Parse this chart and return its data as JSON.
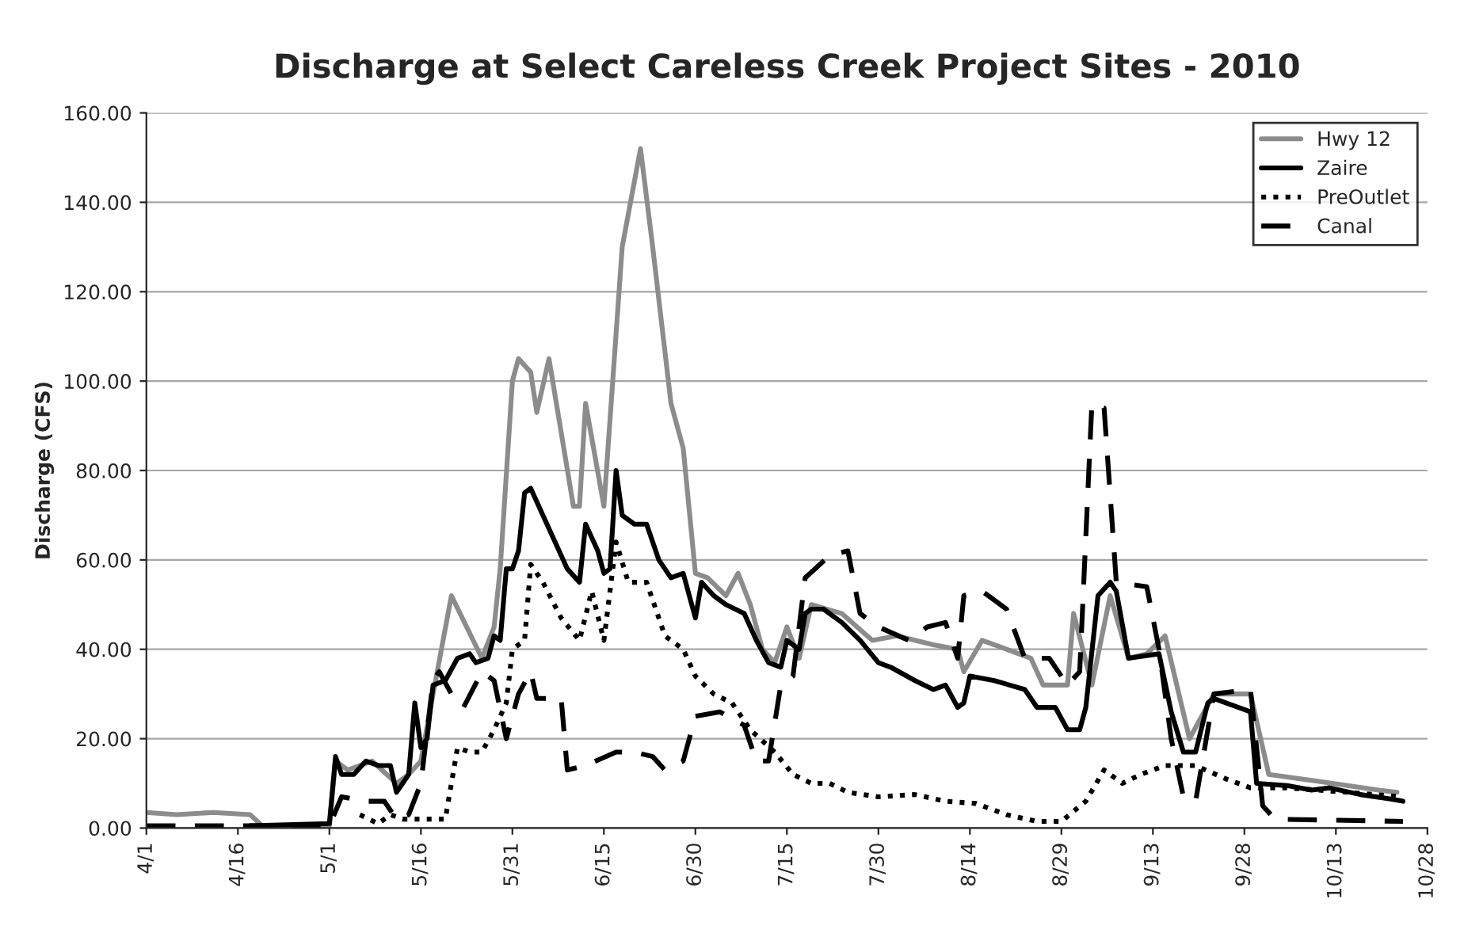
{
  "chart_data": {
    "type": "line",
    "title": "Discharge at Select Careless Creek Project Sites - 2010",
    "ylabel": "Discharge (CFS)",
    "xlim": [
      "2010-04-01",
      "2010-10-28"
    ],
    "xticks": [
      {
        "value": "2010-04-01",
        "label": "4/1"
      },
      {
        "value": "2010-04-16",
        "label": "4/16"
      },
      {
        "value": "2010-05-01",
        "label": "5/1"
      },
      {
        "value": "2010-05-16",
        "label": "5/16"
      },
      {
        "value": "2010-05-31",
        "label": "5/31"
      },
      {
        "value": "2010-06-15",
        "label": "6/15"
      },
      {
        "value": "2010-06-30",
        "label": "6/30"
      },
      {
        "value": "2010-07-15",
        "label": "7/15"
      },
      {
        "value": "2010-07-30",
        "label": "7/30"
      },
      {
        "value": "2010-08-14",
        "label": "8/14"
      },
      {
        "value": "2010-08-29",
        "label": "8/29"
      },
      {
        "value": "2010-09-13",
        "label": "9/13"
      },
      {
        "value": "2010-09-28",
        "label": "9/28"
      },
      {
        "value": "2010-10-13",
        "label": "10/13"
      },
      {
        "value": "2010-10-28",
        "label": "10/28"
      }
    ],
    "ylim": [
      0,
      160
    ],
    "yticks": [
      {
        "value": 0,
        "label": "0.00"
      },
      {
        "value": 20,
        "label": "20.00"
      },
      {
        "value": 40,
        "label": "40.00"
      },
      {
        "value": 60,
        "label": "60.00"
      },
      {
        "value": 80,
        "label": "80.00"
      },
      {
        "value": 100,
        "label": "100.00"
      },
      {
        "value": 120,
        "label": "120.00"
      },
      {
        "value": 140,
        "label": "140.00"
      },
      {
        "value": 160,
        "label": "160.00"
      }
    ],
    "grid": "y",
    "legend": "top right",
    "series": [
      {
        "name": "Hwy 12",
        "color": "#8c8c8c",
        "line_style": "solid",
        "x": [
          "2010-04-01",
          "2010-04-06",
          "2010-04-12",
          "2010-04-18",
          "2010-04-20",
          "2010-04-25",
          "2010-05-01",
          "2010-05-02",
          "2010-05-04",
          "2010-05-08",
          "2010-05-12",
          "2010-05-14",
          "2010-05-16",
          "2010-05-18",
          "2010-05-21",
          "2010-05-26",
          "2010-05-28",
          "2010-05-29",
          "2010-05-31",
          "2010-06-01",
          "2010-06-03",
          "2010-06-04",
          "2010-06-06",
          "2010-06-10",
          "2010-06-11",
          "2010-06-12",
          "2010-06-15",
          "2010-06-18",
          "2010-06-21",
          "2010-06-23",
          "2010-06-26",
          "2010-06-28",
          "2010-06-30",
          "2010-07-02",
          "2010-07-05",
          "2010-07-07",
          "2010-07-09",
          "2010-07-11",
          "2010-07-13",
          "2010-07-15",
          "2010-07-17",
          "2010-07-19",
          "2010-07-24",
          "2010-07-29",
          "2010-08-02",
          "2010-08-08",
          "2010-08-12",
          "2010-08-13",
          "2010-08-16",
          "2010-08-20",
          "2010-08-24",
          "2010-08-26",
          "2010-08-30",
          "2010-08-31",
          "2010-09-03",
          "2010-09-06",
          "2010-09-09",
          "2010-09-12",
          "2010-09-15",
          "2010-09-19",
          "2010-09-23",
          "2010-09-29",
          "2010-10-02",
          "2010-10-10",
          "2010-10-20",
          "2010-10-23"
        ],
        "values": [
          3.5,
          3,
          3.5,
          3,
          0.5,
          0.5,
          0.5,
          15,
          13,
          15,
          10,
          12,
          15,
          30,
          52,
          38,
          45,
          58,
          100,
          105,
          102,
          93,
          105,
          72,
          72,
          95,
          72,
          130,
          152,
          130,
          95,
          85,
          57,
          56,
          52,
          57,
          50,
          40,
          37,
          45,
          38,
          50,
          48,
          42,
          43,
          41,
          40,
          35,
          42,
          40,
          38,
          32,
          32,
          48,
          32,
          52,
          38,
          39,
          43,
          20,
          30,
          30,
          12,
          10.5,
          8.5,
          8
        ]
      },
      {
        "name": "Zaire",
        "color": "#000000",
        "line_style": "solid",
        "x": [
          "2010-04-18",
          "2010-05-01",
          "2010-05-02",
          "2010-05-03",
          "2010-05-05",
          "2010-05-07",
          "2010-05-09",
          "2010-05-11",
          "2010-05-12",
          "2010-05-14",
          "2010-05-15",
          "2010-05-16",
          "2010-05-17",
          "2010-05-18",
          "2010-05-20",
          "2010-05-22",
          "2010-05-24",
          "2010-05-25",
          "2010-05-27",
          "2010-05-28",
          "2010-05-29",
          "2010-05-30",
          "2010-05-31",
          "2010-06-01",
          "2010-06-02",
          "2010-06-03",
          "2010-06-05",
          "2010-06-09",
          "2010-06-11",
          "2010-06-12",
          "2010-06-14",
          "2010-06-15",
          "2010-06-16",
          "2010-06-17",
          "2010-06-18",
          "2010-06-20",
          "2010-06-22",
          "2010-06-24",
          "2010-06-26",
          "2010-06-28",
          "2010-06-30",
          "2010-07-01",
          "2010-07-03",
          "2010-07-05",
          "2010-07-08",
          "2010-07-10",
          "2010-07-12",
          "2010-07-14",
          "2010-07-15",
          "2010-07-17",
          "2010-07-18",
          "2010-07-19",
          "2010-07-21",
          "2010-07-24",
          "2010-07-27",
          "2010-07-30",
          "2010-08-01",
          "2010-08-05",
          "2010-08-08",
          "2010-08-10",
          "2010-08-12",
          "2010-08-13",
          "2010-08-14",
          "2010-08-18",
          "2010-08-23",
          "2010-08-25",
          "2010-08-28",
          "2010-08-30",
          "2010-09-01",
          "2010-09-02",
          "2010-09-04",
          "2010-09-06",
          "2010-09-07",
          "2010-09-09",
          "2010-09-14",
          "2010-09-16",
          "2010-09-18",
          "2010-09-20",
          "2010-09-22",
          "2010-09-23",
          "2010-09-29",
          "2010-09-30",
          "2010-10-05",
          "2010-10-09",
          "2010-10-12",
          "2010-10-17",
          "2010-10-22",
          "2010-10-24"
        ],
        "values": [
          0.5,
          1,
          16,
          12,
          12,
          15,
          14,
          14,
          8,
          12,
          28,
          18,
          20,
          32,
          33,
          38,
          39,
          37,
          38,
          43,
          42,
          58,
          58,
          62,
          75,
          76,
          70,
          58,
          55,
          68,
          62,
          57,
          58,
          80,
          70,
          68,
          68,
          60,
          56,
          57,
          47,
          55,
          52,
          50,
          48,
          42,
          37,
          36,
          42,
          40,
          48,
          49,
          49,
          46,
          42,
          37,
          36,
          33,
          31,
          32,
          27,
          28,
          34,
          33,
          31,
          27,
          27,
          22,
          22,
          27,
          52,
          55,
          53,
          38,
          39,
          26,
          17,
          17,
          28,
          29,
          26,
          10,
          9.5,
          8.5,
          9,
          7.5,
          6.5,
          6
        ]
      },
      {
        "name": "PreOutlet",
        "color": "#000000",
        "line_style": "dotted",
        "x": [
          "2010-05-06",
          "2010-05-09",
          "2010-05-11",
          "2010-05-13",
          "2010-05-17",
          "2010-05-20",
          "2010-05-22",
          "2010-05-24",
          "2010-05-26",
          "2010-05-28",
          "2010-05-30",
          "2010-05-31",
          "2010-06-02",
          "2010-06-03",
          "2010-06-05",
          "2010-06-08",
          "2010-06-11",
          "2010-06-13",
          "2010-06-15",
          "2010-06-17",
          "2010-06-19",
          "2010-06-22",
          "2010-06-25",
          "2010-06-28",
          "2010-06-30",
          "2010-07-03",
          "2010-07-06",
          "2010-07-09",
          "2010-07-13",
          "2010-07-16",
          "2010-07-19",
          "2010-07-22",
          "2010-07-25",
          "2010-07-30",
          "2010-08-05",
          "2010-08-10",
          "2010-08-15",
          "2010-08-20",
          "2010-08-25",
          "2010-08-29",
          "2010-09-02",
          "2010-09-05",
          "2010-09-08",
          "2010-09-11",
          "2010-09-15",
          "2010-09-20",
          "2010-09-25",
          "2010-09-29",
          "2010-10-05",
          "2010-10-15",
          "2010-10-24"
        ],
        "values": [
          3,
          1,
          3,
          2,
          2,
          2,
          18,
          17,
          17,
          22,
          28,
          40,
          42,
          59,
          55,
          47,
          42,
          53,
          42,
          64,
          55,
          55,
          43,
          40,
          34,
          30,
          28,
          22,
          17,
          12,
          10,
          10,
          8,
          7,
          7.5,
          6,
          5.5,
          3,
          1.5,
          1.5,
          6,
          13,
          10,
          12,
          14,
          14,
          11,
          9,
          9,
          8,
          7
        ]
      },
      {
        "name": "Canal",
        "color": "#000000",
        "line_style": "dashed",
        "x": [
          "2010-04-01",
          "2010-04-20",
          "2010-05-01",
          "2010-05-03",
          "2010-05-07",
          "2010-05-10",
          "2010-05-12",
          "2010-05-14",
          "2010-05-16",
          "2010-05-18",
          "2010-05-19",
          "2010-05-21",
          "2010-05-23",
          "2010-05-26",
          "2010-05-28",
          "2010-05-30",
          "2010-06-01",
          "2010-06-03",
          "2010-06-04",
          "2010-06-08",
          "2010-06-09",
          "2010-06-12",
          "2010-06-17",
          "2010-06-20",
          "2010-06-23",
          "2010-06-25",
          "2010-06-28",
          "2010-06-30",
          "2010-07-04",
          "2010-07-08",
          "2010-07-10",
          "2010-07-12",
          "2010-07-14",
          "2010-07-16",
          "2010-07-18",
          "2010-07-22",
          "2010-07-25",
          "2010-07-27",
          "2010-07-30",
          "2010-08-04",
          "2010-08-07",
          "2010-08-10",
          "2010-08-12",
          "2010-08-13",
          "2010-08-16",
          "2010-08-20",
          "2010-08-23",
          "2010-08-27",
          "2010-08-30",
          "2010-09-01",
          "2010-09-03",
          "2010-09-05",
          "2010-09-07",
          "2010-09-12",
          "2010-09-14",
          "2010-09-16",
          "2010-09-18",
          "2010-09-20",
          "2010-09-23",
          "2010-09-29",
          "2010-10-01",
          "2010-10-03",
          "2010-10-24"
        ],
        "values": [
          0.5,
          0.5,
          0.5,
          7,
          6,
          6,
          2,
          3,
          10,
          33,
          35,
          30,
          27,
          35,
          33,
          20,
          30,
          35,
          29,
          29,
          13,
          14,
          17,
          17,
          16,
          13,
          15,
          25,
          26,
          23,
          15,
          15,
          32,
          34,
          56,
          61,
          62,
          48,
          45,
          42,
          45,
          46,
          38,
          52,
          53,
          49,
          38,
          38,
          32,
          35,
          95,
          94,
          55,
          54,
          40,
          20,
          7,
          6,
          30,
          31,
          5,
          2,
          1.5
        ]
      }
    ]
  }
}
